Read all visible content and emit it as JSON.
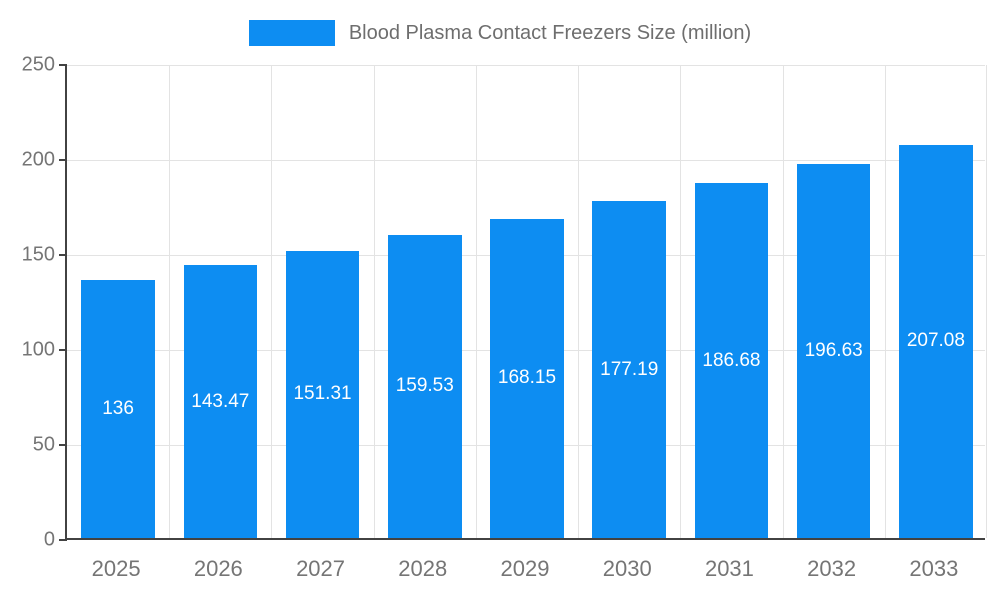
{
  "legend": {
    "label": "Blood Plasma Contact Freezers Size (million)"
  },
  "colors": {
    "bar": "#0d8df2",
    "grid": "#e3e3e3",
    "axis": "#424242",
    "tick_label": "#757575",
    "legend_text": "#6e6e6e",
    "value_label": "#ffffff",
    "background": "#ffffff"
  },
  "chart_data": {
    "type": "bar",
    "title": "Blood Plasma Contact Freezers Size (million)",
    "categories": [
      "2025",
      "2026",
      "2027",
      "2028",
      "2029",
      "2030",
      "2031",
      "2032",
      "2033"
    ],
    "values": [
      136,
      143.47,
      151.31,
      159.53,
      168.15,
      177.19,
      186.68,
      196.63,
      207.08
    ],
    "value_labels": [
      "136",
      "143.47",
      "151.31",
      "159.53",
      "168.15",
      "177.19",
      "186.68",
      "196.63",
      "207.08"
    ],
    "xlabel": "",
    "ylabel": "",
    "ylim": [
      0,
      250
    ],
    "yticks": [
      0,
      50,
      100,
      150,
      200,
      250
    ],
    "grid": true,
    "legend_position": "top"
  }
}
